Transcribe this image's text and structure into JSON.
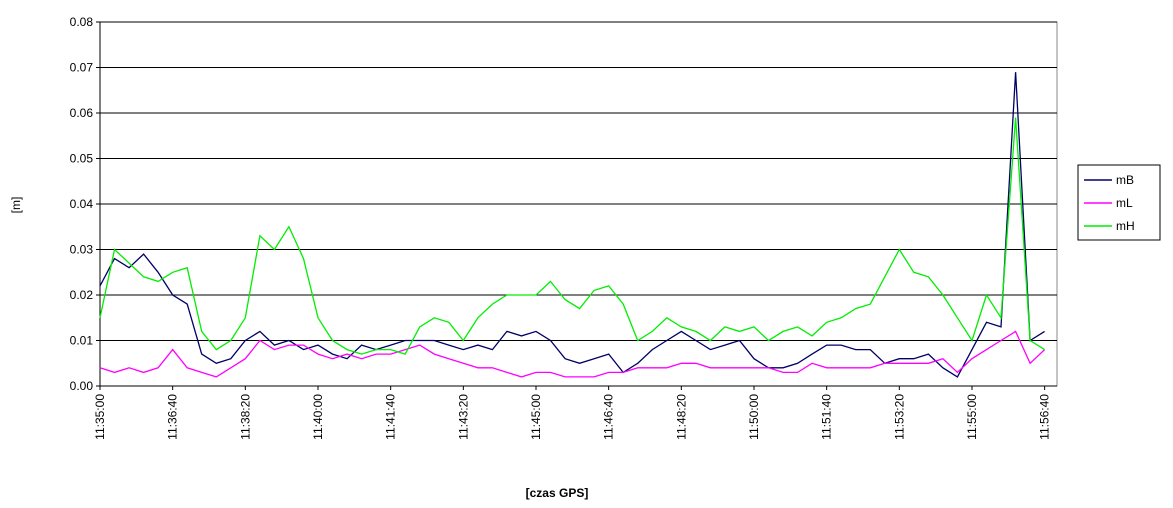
{
  "chart_data": {
    "type": "line",
    "y_label": "[m]",
    "x_label": "[czas GPS]",
    "x": [
      "11:35:00",
      "11:35:20",
      "11:35:40",
      "11:36:00",
      "11:36:20",
      "11:36:40",
      "11:37:00",
      "11:37:20",
      "11:37:40",
      "11:38:00",
      "11:38:20",
      "11:38:40",
      "11:39:00",
      "11:39:20",
      "11:39:40",
      "11:40:00",
      "11:40:20",
      "11:40:40",
      "11:41:00",
      "11:41:20",
      "11:41:40",
      "11:42:00",
      "11:42:20",
      "11:42:40",
      "11:43:00",
      "11:43:20",
      "11:43:40",
      "11:44:00",
      "11:44:20",
      "11:44:40",
      "11:45:00",
      "11:45:20",
      "11:45:40",
      "11:46:00",
      "11:46:20",
      "11:46:40",
      "11:47:00",
      "11:47:20",
      "11:47:40",
      "11:48:00",
      "11:48:20",
      "11:48:40",
      "11:49:00",
      "11:49:20",
      "11:49:40",
      "11:50:00",
      "11:50:20",
      "11:50:40",
      "11:51:00",
      "11:51:20",
      "11:51:40",
      "11:52:00",
      "11:52:20",
      "11:52:40",
      "11:53:00",
      "11:53:20",
      "11:53:40",
      "11:54:00",
      "11:54:20",
      "11:54:40",
      "11:55:00",
      "11:55:20",
      "11:55:40",
      "11:56:00",
      "11:56:20",
      "11:56:40"
    ],
    "series": [
      {
        "name": "mB",
        "color": "#000066",
        "values": [
          0.022,
          0.028,
          0.026,
          0.029,
          0.025,
          0.02,
          0.018,
          0.007,
          0.005,
          0.006,
          0.01,
          0.012,
          0.009,
          0.01,
          0.008,
          0.009,
          0.007,
          0.006,
          0.009,
          0.008,
          0.009,
          0.01,
          0.01,
          0.01,
          0.009,
          0.008,
          0.009,
          0.008,
          0.012,
          0.011,
          0.012,
          0.01,
          0.006,
          0.005,
          0.006,
          0.007,
          0.003,
          0.005,
          0.008,
          0.01,
          0.012,
          0.01,
          0.008,
          0.009,
          0.01,
          0.006,
          0.004,
          0.004,
          0.005,
          0.007,
          0.009,
          0.009,
          0.008,
          0.008,
          0.005,
          0.006,
          0.006,
          0.007,
          0.004,
          0.002,
          0.008,
          0.014,
          0.013,
          0.069,
          0.01,
          0.012
        ]
      },
      {
        "name": "mL",
        "color": "#ff00ff",
        "values": [
          0.004,
          0.003,
          0.004,
          0.003,
          0.004,
          0.008,
          0.004,
          0.003,
          0.002,
          0.004,
          0.006,
          0.01,
          0.008,
          0.009,
          0.009,
          0.007,
          0.006,
          0.007,
          0.006,
          0.007,
          0.007,
          0.008,
          0.009,
          0.007,
          0.006,
          0.005,
          0.004,
          0.004,
          0.003,
          0.002,
          0.003,
          0.003,
          0.002,
          0.002,
          0.002,
          0.003,
          0.003,
          0.004,
          0.004,
          0.004,
          0.005,
          0.005,
          0.004,
          0.004,
          0.004,
          0.004,
          0.004,
          0.003,
          0.003,
          0.005,
          0.004,
          0.004,
          0.004,
          0.004,
          0.005,
          0.005,
          0.005,
          0.005,
          0.006,
          0.003,
          0.006,
          0.008,
          0.01,
          0.012,
          0.005,
          0.008
        ]
      },
      {
        "name": "mH",
        "color": "#00ee00",
        "values": [
          0.015,
          0.03,
          0.027,
          0.024,
          0.023,
          0.025,
          0.026,
          0.012,
          0.008,
          0.01,
          0.015,
          0.033,
          0.03,
          0.035,
          0.028,
          0.015,
          0.01,
          0.008,
          0.007,
          0.008,
          0.008,
          0.007,
          0.013,
          0.015,
          0.014,
          0.01,
          0.015,
          0.018,
          0.02,
          0.02,
          0.02,
          0.023,
          0.019,
          0.017,
          0.021,
          0.022,
          0.018,
          0.01,
          0.012,
          0.015,
          0.013,
          0.012,
          0.01,
          0.013,
          0.012,
          0.013,
          0.01,
          0.012,
          0.013,
          0.011,
          0.014,
          0.015,
          0.017,
          0.018,
          0.024,
          0.03,
          0.025,
          0.024,
          0.02,
          0.015,
          0.01,
          0.02,
          0.015,
          0.059,
          0.01,
          0.008
        ]
      }
    ],
    "xlim": [
      "11:35:00",
      "11:56:57"
    ],
    "xticks": [
      "11:35:00",
      "11:36:40",
      "11:38:20",
      "11:40:00",
      "11:41:40",
      "11:43:20",
      "11:45:00",
      "11:46:40",
      "11:48:20",
      "11:50:00",
      "11:51:40",
      "11:53:20",
      "11:55:00",
      "11:56:40"
    ],
    "ylim": [
      0,
      0.08
    ],
    "yticks": [
      {
        "value": 0,
        "label": "0.00"
      },
      0.01,
      0.02,
      0.03,
      0.04,
      0.05,
      0.06,
      0.07,
      0.08
    ],
    "grid": true,
    "legend": "right"
  }
}
